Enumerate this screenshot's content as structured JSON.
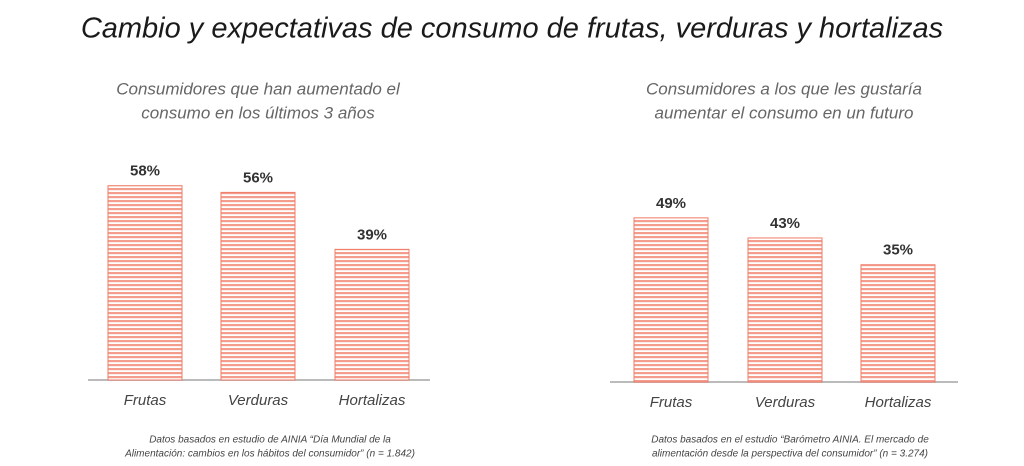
{
  "title": "Cambio y expectativas de consumo de frutas, verduras y hortalizas",
  "chart_data": [
    {
      "type": "bar",
      "subtitle": [
        "Consumidores que han aumentado el",
        "consumo en los últimos 3 años"
      ],
      "categories": [
        "Frutas",
        "Verduras",
        "Hortalizas"
      ],
      "values": [
        58,
        56,
        39
      ],
      "value_labels": [
        "58%",
        "56%",
        "39%"
      ],
      "color": "#f07c68",
      "note": [
        "Datos basados en estudio de AINIA “Día Mundial de la",
        "Alimentación: cambios en los hábitos del consumidor” (n = 1.842)"
      ]
    },
    {
      "type": "bar",
      "subtitle": [
        "Consumidores a los que les gustaría",
        "aumentar el consumo en un futuro"
      ],
      "categories": [
        "Frutas",
        "Verduras",
        "Hortalizas"
      ],
      "values": [
        49,
        43,
        35
      ],
      "value_labels": [
        "49%",
        "43%",
        "35%"
      ],
      "color": "#f07c68",
      "note": [
        "Datos basados en el estudio “Barómetro AINIA. El mercado de",
        "alimentación desde la perspectiva del consumidor” (n = 3.274)"
      ]
    }
  ]
}
